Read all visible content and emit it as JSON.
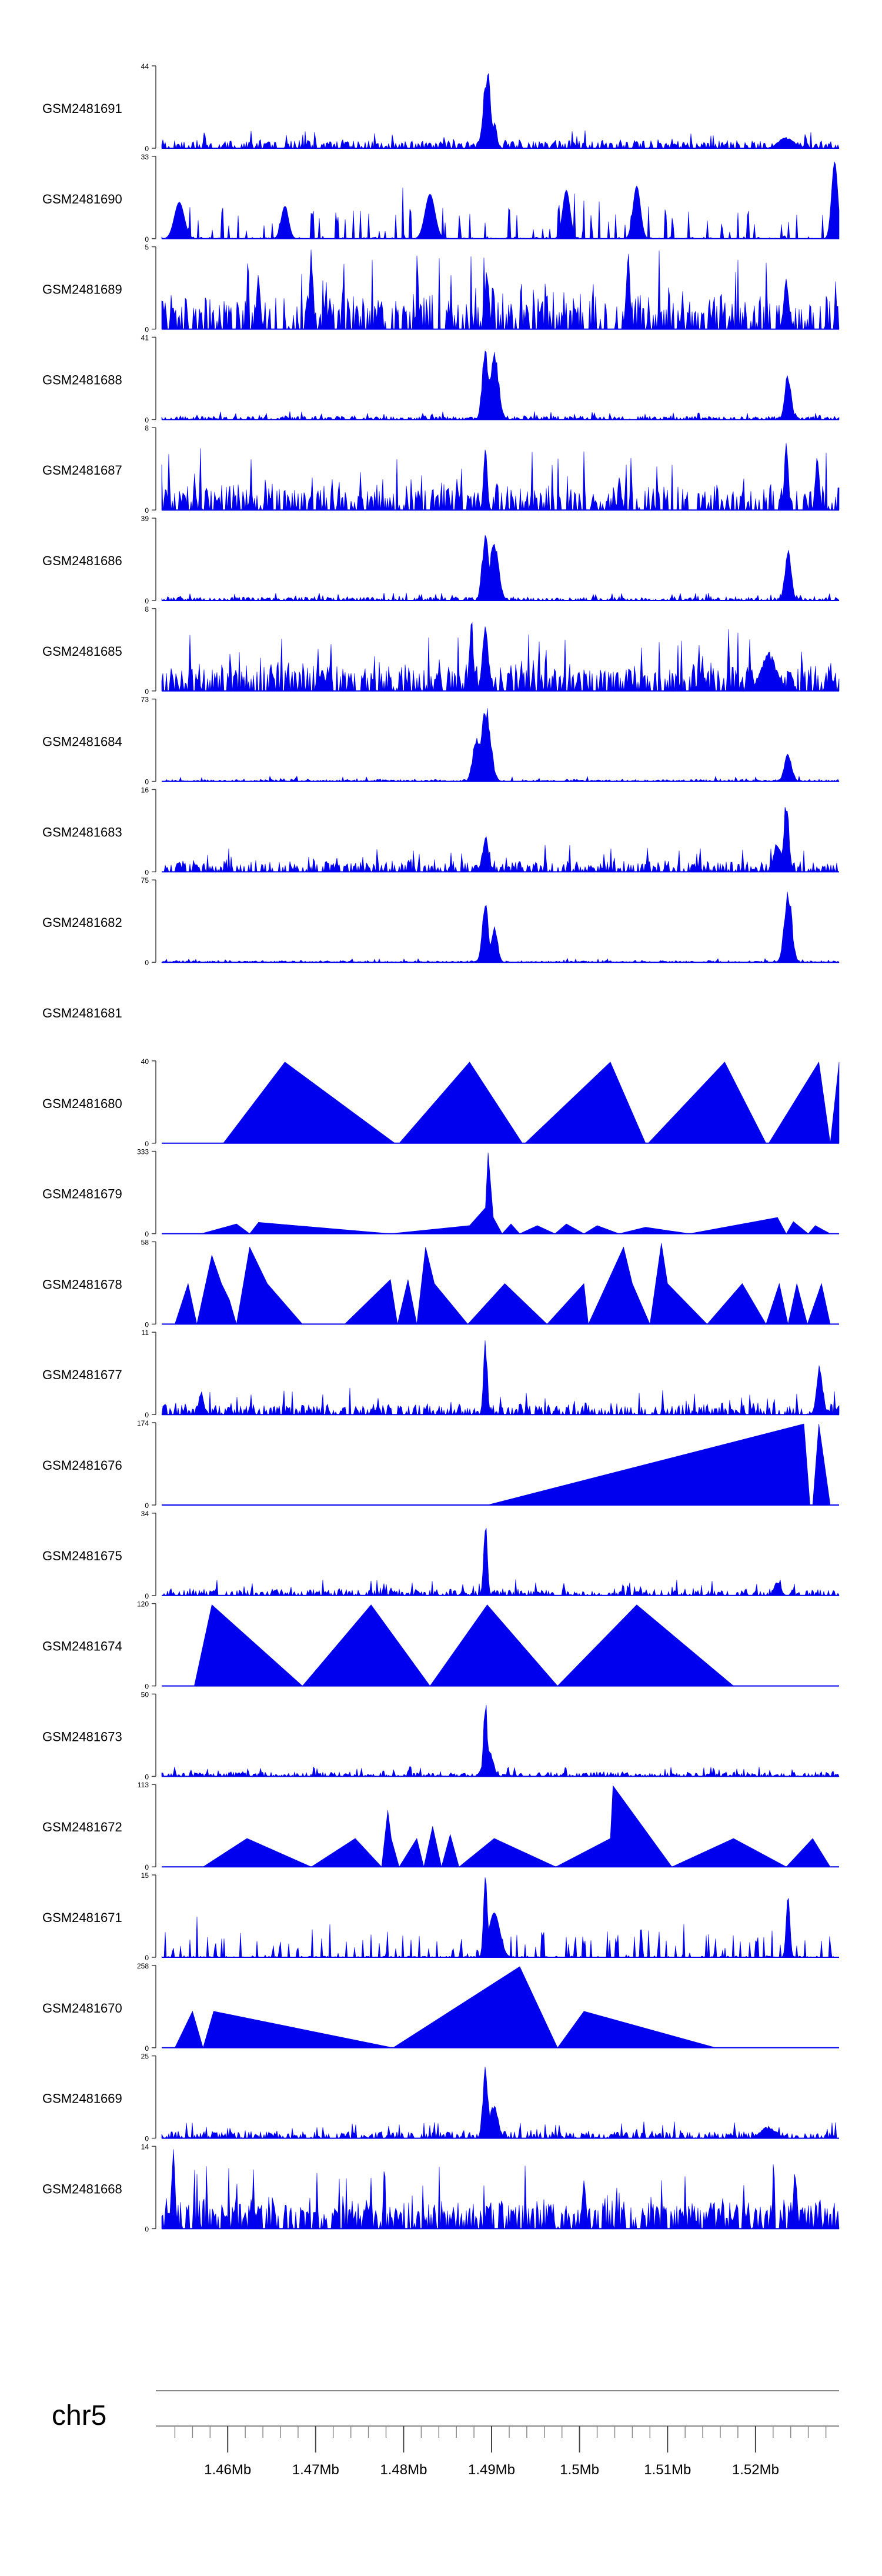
{
  "chart_data": {
    "type": "area",
    "title": "",
    "chromosome_label": "chr5",
    "x_axis": {
      "unit": "Mb",
      "range": [
        1.4525,
        1.5295
      ],
      "tick_labels": [
        "1.46Mb",
        "1.47Mb",
        "1.48Mb",
        "1.49Mb",
        "1.5Mb",
        "1.51Mb",
        "1.52Mb"
      ],
      "major_ticks": [
        1.46,
        1.47,
        1.48,
        1.49,
        1.5,
        1.51,
        1.52
      ],
      "minor_tick_step": 0.002
    },
    "tracks": [
      {
        "name": "GSM2481691",
        "ymax": 44,
        "ymax_label": "44",
        "style": "spiky",
        "density": 0.62,
        "base": 0.05,
        "noise": 0.12,
        "seed": 11,
        "peaks": [
          {
            "pos": 1.4895,
            "height": 1.0,
            "width": 0.0006
          },
          {
            "pos": 1.4903,
            "height": 0.35,
            "width": 0.0004
          },
          {
            "pos": 1.5235,
            "height": 0.15,
            "width": 0.0012
          }
        ]
      },
      {
        "name": "GSM2481690",
        "ymax": 33,
        "ymax_label": "33",
        "style": "sparse",
        "density": 0.35,
        "base": 0.3,
        "noise": 0.35,
        "seed": 12,
        "peaks": [
          {
            "pos": 1.4545,
            "height": 0.45,
            "width": 0.0008
          },
          {
            "pos": 1.4665,
            "height": 0.4,
            "width": 0.0006
          },
          {
            "pos": 1.483,
            "height": 0.55,
            "width": 0.0008
          },
          {
            "pos": 1.4985,
            "height": 0.6,
            "width": 0.0006
          },
          {
            "pos": 1.5065,
            "height": 0.65,
            "width": 0.0006
          },
          {
            "pos": 1.529,
            "height": 0.95,
            "width": 0.0005
          }
        ]
      },
      {
        "name": "GSM2481689",
        "ymax": 5,
        "ymax_label": "5",
        "style": "spiky",
        "density": 0.55,
        "base": 0.2,
        "noise": 0.55,
        "seed": 13,
        "peaks": [
          {
            "pos": 1.4635,
            "height": 0.75,
            "width": 0.0003
          },
          {
            "pos": 1.4695,
            "height": 1.0,
            "width": 0.0003
          },
          {
            "pos": 1.4895,
            "height": 0.8,
            "width": 0.0003
          },
          {
            "pos": 1.5055,
            "height": 1.0,
            "width": 0.0003
          },
          {
            "pos": 1.5235,
            "height": 0.7,
            "width": 0.0004
          }
        ]
      },
      {
        "name": "GSM2481688",
        "ymax": 41,
        "ymax_label": "41",
        "style": "spiky",
        "density": 0.6,
        "base": 0.02,
        "noise": 0.06,
        "seed": 14,
        "peaks": [
          {
            "pos": 1.4893,
            "height": 0.95,
            "width": 0.0005
          },
          {
            "pos": 1.4903,
            "height": 0.85,
            "width": 0.0007
          },
          {
            "pos": 1.5237,
            "height": 0.6,
            "width": 0.0005
          }
        ]
      },
      {
        "name": "GSM2481687",
        "ymax": 8,
        "ymax_label": "8",
        "style": "spiky",
        "density": 0.6,
        "base": 0.12,
        "noise": 0.45,
        "seed": 15,
        "peaks": [
          {
            "pos": 1.4893,
            "height": 0.8,
            "width": 0.0003
          },
          {
            "pos": 1.5235,
            "height": 1.0,
            "width": 0.0003
          },
          {
            "pos": 1.527,
            "height": 0.7,
            "width": 0.0003
          }
        ]
      },
      {
        "name": "GSM2481686",
        "ymax": 39,
        "ymax_label": "39",
        "style": "spiky",
        "density": 0.6,
        "base": 0.02,
        "noise": 0.06,
        "seed": 16,
        "peaks": [
          {
            "pos": 1.4893,
            "height": 0.95,
            "width": 0.0005
          },
          {
            "pos": 1.4903,
            "height": 0.8,
            "width": 0.0007
          },
          {
            "pos": 1.5237,
            "height": 0.65,
            "width": 0.0005
          }
        ]
      },
      {
        "name": "GSM2481685",
        "ymax": 8,
        "ymax_label": "8",
        "style": "spiky",
        "density": 0.65,
        "base": 0.15,
        "noise": 0.45,
        "seed": 17,
        "peaks": [
          {
            "pos": 1.4877,
            "height": 1.0,
            "width": 0.0003
          },
          {
            "pos": 1.4893,
            "height": 0.8,
            "width": 0.0005
          },
          {
            "pos": 1.5215,
            "height": 0.5,
            "width": 0.0012
          }
        ]
      },
      {
        "name": "GSM2481684",
        "ymax": 73,
        "ymax_label": "73",
        "style": "spiky",
        "density": 0.6,
        "base": 0.01,
        "noise": 0.04,
        "seed": 18,
        "peaks": [
          {
            "pos": 1.4893,
            "height": 0.98,
            "width": 0.0008
          },
          {
            "pos": 1.4883,
            "height": 0.6,
            "width": 0.0006
          },
          {
            "pos": 1.5237,
            "height": 0.35,
            "width": 0.0006
          }
        ]
      },
      {
        "name": "GSM2481683",
        "ymax": 16,
        "ymax_label": "16",
        "style": "spiky",
        "density": 0.6,
        "base": 0.05,
        "noise": 0.2,
        "seed": 19,
        "peaks": [
          {
            "pos": 1.4893,
            "height": 0.45,
            "width": 0.0005
          },
          {
            "pos": 1.5235,
            "height": 0.95,
            "width": 0.0004
          },
          {
            "pos": 1.5225,
            "height": 0.4,
            "width": 0.0006
          }
        ]
      },
      {
        "name": "GSM2481682",
        "ymax": 75,
        "ymax_label": "75",
        "style": "spiky",
        "density": 0.6,
        "base": 0.01,
        "noise": 0.03,
        "seed": 20,
        "peaks": [
          {
            "pos": 1.4893,
            "height": 0.75,
            "width": 0.0005
          },
          {
            "pos": 1.4903,
            "height": 0.5,
            "width": 0.0005
          },
          {
            "pos": 1.5237,
            "height": 0.95,
            "width": 0.0006
          }
        ]
      },
      {
        "name": "GSM2481681",
        "empty": true
      },
      {
        "name": "GSM2481680",
        "ymax": 40,
        "ymax_label": "40",
        "style": "points",
        "points": [
          [
            1.4595,
            0
          ],
          [
            1.4665,
            1
          ],
          [
            1.479,
            0
          ],
          [
            1.4795,
            0
          ],
          [
            1.4875,
            1
          ],
          [
            1.4935,
            0
          ],
          [
            1.4938,
            0
          ],
          [
            1.5035,
            1
          ],
          [
            1.5075,
            0
          ],
          [
            1.5078,
            0
          ],
          [
            1.5165,
            1
          ],
          [
            1.5212,
            0
          ],
          [
            1.5215,
            0
          ],
          [
            1.5272,
            1
          ],
          [
            1.5285,
            0
          ],
          [
            1.5295,
            1
          ]
        ]
      },
      {
        "name": "GSM2481679",
        "ymax": 333,
        "ymax_label": "333",
        "style": "points",
        "points": [
          [
            1.457,
            0
          ],
          [
            1.461,
            0.12
          ],
          [
            1.4625,
            0
          ],
          [
            1.4635,
            0.14
          ],
          [
            1.4785,
            0
          ],
          [
            1.4875,
            0.1
          ],
          [
            1.4893,
            0.32
          ],
          [
            1.4896,
            1.0
          ],
          [
            1.4902,
            0.2
          ],
          [
            1.4912,
            0
          ],
          [
            1.4922,
            0.12
          ],
          [
            1.4932,
            0
          ],
          [
            1.4952,
            0.1
          ],
          [
            1.4972,
            0
          ],
          [
            1.4985,
            0.12
          ],
          [
            1.5005,
            0
          ],
          [
            1.502,
            0.1
          ],
          [
            1.5045,
            0
          ],
          [
            1.5075,
            0.08
          ],
          [
            1.5125,
            0
          ],
          [
            1.5225,
            0.2
          ],
          [
            1.5235,
            0
          ],
          [
            1.5243,
            0.15
          ],
          [
            1.526,
            0
          ],
          [
            1.5268,
            0.1
          ],
          [
            1.5285,
            0
          ]
        ]
      },
      {
        "name": "GSM2481678",
        "ymax": 58,
        "ymax_label": "58",
        "style": "points",
        "points": [
          [
            1.454,
            0
          ],
          [
            1.4555,
            0.5
          ],
          [
            1.4565,
            0
          ],
          [
            1.4582,
            0.85
          ],
          [
            1.4593,
            0.5
          ],
          [
            1.4602,
            0.3
          ],
          [
            1.461,
            0
          ],
          [
            1.4625,
            0.95
          ],
          [
            1.4645,
            0.5
          ],
          [
            1.4685,
            0
          ],
          [
            1.4733,
            0
          ],
          [
            1.4785,
            0.55
          ],
          [
            1.4793,
            0
          ],
          [
            1.4805,
            0.55
          ],
          [
            1.4815,
            0
          ],
          [
            1.4825,
            0.95
          ],
          [
            1.4835,
            0.5
          ],
          [
            1.4873,
            0
          ],
          [
            1.4915,
            0.5
          ],
          [
            1.4963,
            0
          ],
          [
            1.5005,
            0.5
          ],
          [
            1.501,
            0
          ],
          [
            1.505,
            0.95
          ],
          [
            1.506,
            0.5
          ],
          [
            1.508,
            0
          ],
          [
            1.5093,
            1.0
          ],
          [
            1.51,
            0.5
          ],
          [
            1.5145,
            0
          ],
          [
            1.5185,
            0.5
          ],
          [
            1.5212,
            0
          ],
          [
            1.5227,
            0.5
          ],
          [
            1.5237,
            0
          ],
          [
            1.5247,
            0.5
          ],
          [
            1.5259,
            0
          ],
          [
            1.5275,
            0.5
          ],
          [
            1.5285,
            0
          ]
        ]
      },
      {
        "name": "GSM2481677",
        "ymax": 11,
        "ymax_label": "11",
        "style": "spiky",
        "density": 0.6,
        "base": 0.05,
        "noise": 0.2,
        "seed": 21,
        "peaks": [
          {
            "pos": 1.4893,
            "height": 1.0,
            "width": 0.0003
          },
          {
            "pos": 1.5273,
            "height": 0.62,
            "width": 0.0005
          },
          {
            "pos": 1.457,
            "height": 0.3,
            "width": 0.0004
          }
        ]
      },
      {
        "name": "GSM2481676",
        "ymax": 174,
        "ymax_label": "174",
        "style": "points",
        "points": [
          [
            1.4895,
            0
          ],
          [
            1.5255,
            1.0
          ],
          [
            1.5262,
            0
          ],
          [
            1.5265,
            0
          ],
          [
            1.5272,
            1.0
          ],
          [
            1.5285,
            0
          ]
        ]
      },
      {
        "name": "GSM2481675",
        "ymax": 34,
        "ymax_label": "34",
        "style": "spiky",
        "density": 0.6,
        "base": 0.03,
        "noise": 0.12,
        "seed": 22,
        "peaks": [
          {
            "pos": 1.4893,
            "height": 1.0,
            "width": 0.0003
          },
          {
            "pos": 1.5225,
            "height": 0.2,
            "width": 0.0005
          }
        ]
      },
      {
        "name": "GSM2481674",
        "ymax": 120,
        "ymax_label": "120",
        "style": "points",
        "points": [
          [
            1.4562,
            0
          ],
          [
            1.4582,
            1.0
          ],
          [
            1.4685,
            0
          ],
          [
            1.4763,
            1.0
          ],
          [
            1.483,
            0
          ],
          [
            1.4895,
            1.0
          ],
          [
            1.4975,
            0
          ],
          [
            1.5065,
            1.0
          ],
          [
            1.5175,
            0
          ]
        ]
      },
      {
        "name": "GSM2481673",
        "ymax": 50,
        "ymax_label": "50",
        "style": "spiky",
        "density": 0.6,
        "base": 0.02,
        "noise": 0.08,
        "seed": 23,
        "peaks": [
          {
            "pos": 1.4893,
            "height": 1.0,
            "width": 0.0003
          },
          {
            "pos": 1.4896,
            "height": 0.4,
            "width": 0.0007
          }
        ]
      },
      {
        "name": "GSM2481672",
        "ymax": 113,
        "ymax_label": "113",
        "style": "points",
        "points": [
          [
            1.4572,
            0
          ],
          [
            1.4622,
            0.35
          ],
          [
            1.4695,
            0
          ],
          [
            1.4745,
            0.35
          ],
          [
            1.4775,
            0
          ],
          [
            1.4782,
            0.7
          ],
          [
            1.4786,
            0.35
          ],
          [
            1.4795,
            0
          ],
          [
            1.4815,
            0.35
          ],
          [
            1.4823,
            0
          ],
          [
            1.4833,
            0.5
          ],
          [
            1.4843,
            0
          ],
          [
            1.4853,
            0.4
          ],
          [
            1.4863,
            0
          ],
          [
            1.4903,
            0.35
          ],
          [
            1.4973,
            0
          ],
          [
            1.5035,
            0.35
          ],
          [
            1.5038,
            1.0
          ],
          [
            1.5105,
            0
          ],
          [
            1.5175,
            0.35
          ],
          [
            1.5235,
            0
          ],
          [
            1.5265,
            0.35
          ],
          [
            1.5285,
            0
          ]
        ]
      },
      {
        "name": "GSM2481671",
        "ymax": 15,
        "ymax_label": "15",
        "style": "sparse",
        "density": 0.5,
        "base": 0.25,
        "noise": 0.2,
        "seed": 24,
        "peaks": [
          {
            "pos": 1.4893,
            "height": 1.0,
            "width": 0.0003
          },
          {
            "pos": 1.4903,
            "height": 0.55,
            "width": 0.0009
          },
          {
            "pos": 1.5237,
            "height": 0.75,
            "width": 0.0003
          }
        ]
      },
      {
        "name": "GSM2481670",
        "ymax": 258,
        "ymax_label": "258",
        "style": "points",
        "points": [
          [
            1.454,
            0
          ],
          [
            1.456,
            0.45
          ],
          [
            1.4572,
            0
          ],
          [
            1.4584,
            0.45
          ],
          [
            1.4788,
            0
          ],
          [
            1.4932,
            1.0
          ],
          [
            1.4975,
            0
          ],
          [
            1.5005,
            0.45
          ],
          [
            1.5155,
            0
          ]
        ]
      },
      {
        "name": "GSM2481669",
        "ymax": 25,
        "ymax_label": "25",
        "style": "spiky",
        "density": 0.6,
        "base": 0.04,
        "noise": 0.12,
        "seed": 25,
        "peaks": [
          {
            "pos": 1.4893,
            "height": 1.0,
            "width": 0.0004
          },
          {
            "pos": 1.4902,
            "height": 0.45,
            "width": 0.0007
          },
          {
            "pos": 1.5215,
            "height": 0.15,
            "width": 0.0012
          }
        ]
      },
      {
        "name": "GSM2481668",
        "ymax": 14,
        "ymax_label": "14",
        "style": "spiky",
        "density": 0.7,
        "base": 0.18,
        "noise": 0.45,
        "seed": 26,
        "peaks": [
          {
            "pos": 1.4538,
            "height": 1.0,
            "width": 0.0003
          },
          {
            "pos": 1.5005,
            "height": 0.7,
            "width": 0.0003
          },
          {
            "pos": 1.5245,
            "height": 0.75,
            "width": 0.0003
          }
        ]
      }
    ],
    "colors": {
      "fill": "#0000ee",
      "axis": "#444444",
      "line": "#888888",
      "text": "#000000"
    }
  }
}
